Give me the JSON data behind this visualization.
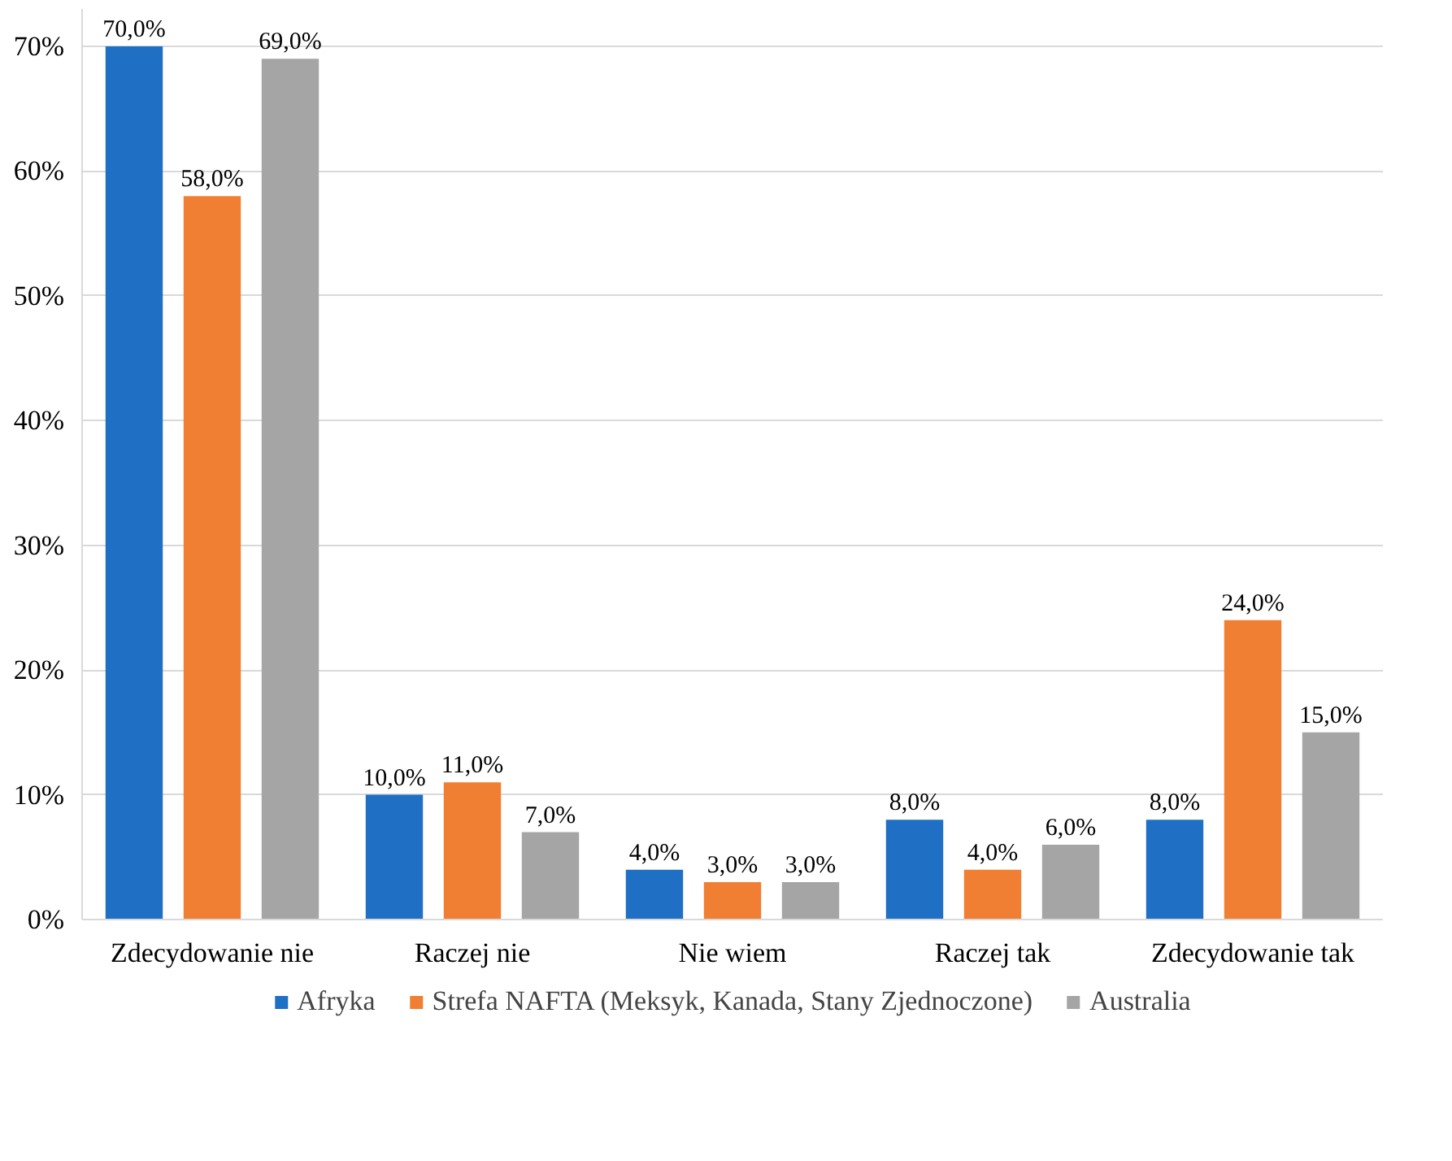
{
  "chart_data": {
    "type": "bar",
    "categories": [
      "Zdecydowanie nie",
      "Raczej nie",
      "Nie wiem",
      "Raczej tak",
      "Zdecydowanie tak"
    ],
    "series": [
      {
        "name": "Afryka",
        "color": "#1f6fc5",
        "values": [
          70,
          10,
          4,
          8,
          8
        ],
        "value_labels": [
          "70,0%",
          "10,0%",
          "4,0%",
          "8,0%",
          "8,0%"
        ]
      },
      {
        "name": "Strefa NAFTA (Meksyk, Kanada, Stany Zjednoczone)",
        "color": "#f07f33",
        "values": [
          58,
          11,
          3,
          4,
          24
        ],
        "value_labels": [
          "58,0%",
          "11,0%",
          "3,0%",
          "4,0%",
          "24,0%"
        ]
      },
      {
        "name": "Australia",
        "color": "#a5a5a5",
        "values": [
          69,
          7,
          3,
          6,
          15
        ],
        "value_labels": [
          "69,0%",
          "7,0%",
          "3,0%",
          "6,0%",
          "15,0%"
        ]
      }
    ],
    "ylim": [
      0,
      73
    ],
    "yticks": [
      {
        "value": 0,
        "label": "0%"
      },
      {
        "value": 10,
        "label": "10%"
      },
      {
        "value": 20,
        "label": "20%"
      },
      {
        "value": 30,
        "label": "30%"
      },
      {
        "value": 40,
        "label": "40%"
      },
      {
        "value": 50,
        "label": "50%"
      },
      {
        "value": 60,
        "label": "60%"
      },
      {
        "value": 70,
        "label": "70%"
      }
    ],
    "grid": "y",
    "legend": "bottom"
  }
}
